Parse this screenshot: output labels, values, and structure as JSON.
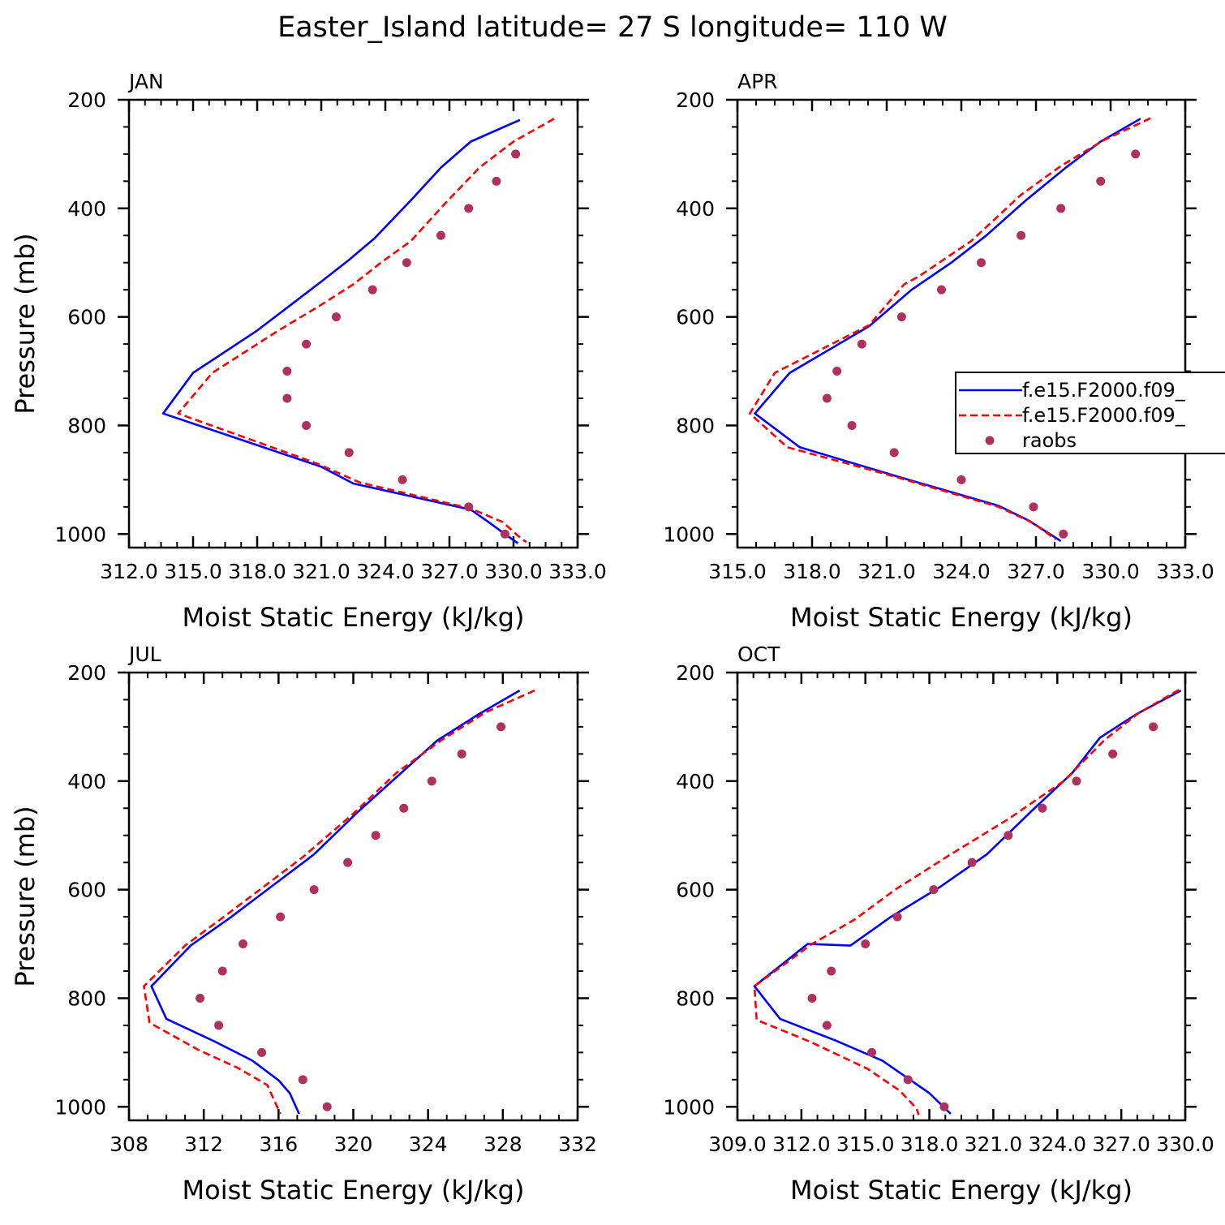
{
  "figure": {
    "title": "Easter_Island  latitude= 27 S longitude= 110 W"
  },
  "colors": {
    "model_a": "#0000ff",
    "model_b": "#ff0000",
    "raobs": "#b03060",
    "axes": "#000000",
    "background": "#ffffff"
  },
  "legend": {
    "entries": [
      {
        "label": "f.e15.F2000.f09_",
        "style": "solid",
        "color": "#0000ff"
      },
      {
        "label": "f.e15.F2000.f09_",
        "style": "dashed",
        "color": "#ff0000"
      },
      {
        "label": "raobs",
        "style": "dots",
        "color": "#b03060"
      }
    ]
  },
  "chart_data": [
    {
      "type": "line",
      "panel": "JAN",
      "xlabel": "Moist Static Energy (kJ/kg)",
      "ylabel": "Pressure (mb)",
      "xlim": [
        312.0,
        333.0
      ],
      "xticks": [
        "312.0",
        "315.0",
        "318.0",
        "321.0",
        "324.0",
        "327.0",
        "330.0",
        "333.0"
      ],
      "xtick_values": [
        312,
        315,
        318,
        321,
        324,
        327,
        330,
        333
      ],
      "ylim": [
        1025,
        200
      ],
      "yticks": [
        200,
        400,
        600,
        800,
        1000
      ],
      "yscale": "linear",
      "grid": false,
      "series": [
        {
          "style": "solid",
          "color": "#0000ff",
          "points": [
            [
              330.3,
              237
            ],
            [
              328.0,
              277
            ],
            [
              326.6,
              325
            ],
            [
              325.2,
              385
            ],
            [
              323.5,
              455
            ],
            [
              322.3,
              495
            ],
            [
              321.0,
              535
            ],
            [
              319.5,
              580
            ],
            [
              318.0,
              625
            ],
            [
              315.0,
              703
            ],
            [
              313.6,
              778
            ],
            [
              321.0,
              876
            ],
            [
              322.5,
              907
            ],
            [
              328.0,
              955
            ],
            [
              328.8,
              977
            ],
            [
              329.7,
              1003
            ],
            [
              330.2,
              1017
            ]
          ]
        },
        {
          "style": "dashed",
          "color": "#ff0000",
          "points": [
            [
              331.9,
              235
            ],
            [
              330.0,
              277
            ],
            [
              328.4,
              325
            ],
            [
              326.7,
              395
            ],
            [
              325.2,
              460
            ],
            [
              323.8,
              500
            ],
            [
              322.5,
              540
            ],
            [
              320.9,
              580
            ],
            [
              319.0,
              625
            ],
            [
              315.9,
              703
            ],
            [
              314.3,
              778
            ],
            [
              320.8,
              870
            ],
            [
              322.8,
              905
            ],
            [
              328.0,
              953
            ],
            [
              329.5,
              978
            ],
            [
              330.2,
              1003
            ],
            [
              330.6,
              1015
            ]
          ]
        },
        {
          "style": "dots",
          "color": "#b03060",
          "points": [
            [
              330.1,
              300
            ],
            [
              329.2,
              350
            ],
            [
              327.9,
              400
            ],
            [
              326.6,
              450
            ],
            [
              325.0,
              500
            ],
            [
              323.4,
              550
            ],
            [
              321.7,
              600
            ],
            [
              320.3,
              650
            ],
            [
              319.4,
              700
            ],
            [
              319.4,
              750
            ],
            [
              320.3,
              800
            ],
            [
              322.3,
              850
            ],
            [
              324.8,
              900
            ],
            [
              327.9,
              950
            ],
            [
              329.6,
              1000
            ]
          ]
        }
      ]
    },
    {
      "type": "line",
      "panel": "APR",
      "xlabel": "Moist Static Energy (kJ/kg)",
      "ylabel": "",
      "xlim": [
        315.0,
        333.0
      ],
      "xticks": [
        "315.0",
        "318.0",
        "321.0",
        "324.0",
        "327.0",
        "330.0",
        "333.0"
      ],
      "xtick_values": [
        315,
        318,
        321,
        324,
        327,
        330,
        333
      ],
      "ylim": [
        1025,
        200
      ],
      "yticks": [
        200,
        400,
        600,
        800,
        1000
      ],
      "yscale": "linear",
      "grid": false,
      "series": [
        {
          "style": "solid",
          "color": "#0000ff",
          "points": [
            [
              331.2,
              235
            ],
            [
              329.6,
              277
            ],
            [
              328.2,
              325
            ],
            [
              326.6,
              385
            ],
            [
              325.0,
              450
            ],
            [
              323.6,
              500
            ],
            [
              322.0,
              550
            ],
            [
              320.3,
              617
            ],
            [
              317.1,
              703
            ],
            [
              315.7,
              778
            ],
            [
              317.5,
              840
            ],
            [
              321.5,
              895
            ],
            [
              325.5,
              948
            ],
            [
              326.7,
              975
            ],
            [
              328.0,
              1013
            ]
          ]
        },
        {
          "style": "dashed",
          "color": "#ff0000",
          "points": [
            [
              331.6,
              234
            ],
            [
              329.7,
              275
            ],
            [
              328.0,
              322
            ],
            [
              326.4,
              375
            ],
            [
              324.4,
              460
            ],
            [
              322.3,
              525
            ],
            [
              321.7,
              540
            ],
            [
              320.3,
              615
            ],
            [
              316.5,
              703
            ],
            [
              315.5,
              778
            ],
            [
              317.0,
              840
            ],
            [
              321.0,
              890
            ],
            [
              325.5,
              950
            ],
            [
              326.9,
              980
            ],
            [
              327.8,
              1010
            ]
          ]
        },
        {
          "style": "dots",
          "color": "#b03060",
          "points": [
            [
              331.0,
              300
            ],
            [
              329.6,
              350
            ],
            [
              328.0,
              400
            ],
            [
              326.4,
              450
            ],
            [
              324.8,
              500
            ],
            [
              323.2,
              550
            ],
            [
              321.6,
              600
            ],
            [
              320.0,
              650
            ],
            [
              319.0,
              700
            ],
            [
              318.6,
              750
            ],
            [
              319.6,
              800
            ],
            [
              321.3,
              850
            ],
            [
              324.0,
              900
            ],
            [
              326.9,
              950
            ],
            [
              328.1,
              1000
            ]
          ]
        }
      ]
    },
    {
      "type": "line",
      "panel": "JUL",
      "xlabel": "Moist Static Energy (kJ/kg)",
      "ylabel": "Pressure (mb)",
      "xlim": [
        308,
        332
      ],
      "xticks": [
        "308",
        "312",
        "316",
        "320",
        "324",
        "328",
        "332"
      ],
      "xtick_values": [
        308,
        312,
        316,
        320,
        324,
        328,
        332
      ],
      "ylim": [
        1025,
        200
      ],
      "yticks": [
        200,
        400,
        600,
        800,
        1000
      ],
      "yscale": "linear",
      "grid": false,
      "series": [
        {
          "style": "solid",
          "color": "#0000ff",
          "points": [
            [
              328.9,
              233
            ],
            [
              326.7,
              277
            ],
            [
              324.5,
              325
            ],
            [
              322.4,
              390
            ],
            [
              320.3,
              455
            ],
            [
              317.9,
              535
            ],
            [
              315.4,
              600
            ],
            [
              313.4,
              652
            ],
            [
              311.3,
              703
            ],
            [
              309.2,
              778
            ],
            [
              310.0,
              838
            ],
            [
              312.6,
              880
            ],
            [
              314.6,
              915
            ],
            [
              316.0,
              951
            ],
            [
              316.6,
              975
            ],
            [
              317.1,
              1013
            ]
          ]
        },
        {
          "style": "dashed",
          "color": "#ff0000",
          "points": [
            [
              329.7,
              233
            ],
            [
              327.1,
              273
            ],
            [
              324.7,
              325
            ],
            [
              322.3,
              385
            ],
            [
              320.0,
              460
            ],
            [
              317.3,
              540
            ],
            [
              315.0,
              600
            ],
            [
              313.0,
              652
            ],
            [
              311.0,
              703
            ],
            [
              308.8,
              778
            ],
            [
              309.1,
              845
            ],
            [
              311.7,
              895
            ],
            [
              313.8,
              928
            ],
            [
              315.4,
              960
            ],
            [
              316.1,
              1013
            ]
          ]
        },
        {
          "style": "dots",
          "color": "#b03060",
          "points": [
            [
              327.9,
              300
            ],
            [
              325.8,
              350
            ],
            [
              324.2,
              400
            ],
            [
              322.7,
              450
            ],
            [
              321.2,
              500
            ],
            [
              319.7,
              550
            ],
            [
              317.9,
              600
            ],
            [
              316.1,
              650
            ],
            [
              314.1,
              700
            ],
            [
              313.0,
              750
            ],
            [
              311.8,
              800
            ],
            [
              312.8,
              850
            ],
            [
              315.1,
              900
            ],
            [
              317.3,
              950
            ],
            [
              318.6,
              1000
            ]
          ]
        }
      ]
    },
    {
      "type": "line",
      "panel": "OCT",
      "xlabel": "Moist Static Energy (kJ/kg)",
      "ylabel": "",
      "xlim": [
        309.0,
        330.0
      ],
      "xticks": [
        "309.0",
        "312.0",
        "315.0",
        "318.0",
        "321.0",
        "324.0",
        "327.0",
        "330.0"
      ],
      "xtick_values": [
        309,
        312,
        315,
        318,
        321,
        324,
        327,
        330
      ],
      "ylim": [
        1025,
        200
      ],
      "yticks": [
        200,
        400,
        600,
        800,
        1000
      ],
      "yscale": "linear",
      "grid": false,
      "series": [
        {
          "style": "solid",
          "color": "#0000ff",
          "points": [
            [
              329.8,
              233
            ],
            [
              327.7,
              277
            ],
            [
              326.0,
              320
            ],
            [
              324.7,
              385
            ],
            [
              322.8,
              455
            ],
            [
              320.7,
              535
            ],
            [
              318.5,
              595
            ],
            [
              316.2,
              650
            ],
            [
              314.3,
              703
            ],
            [
              312.3,
              700
            ],
            [
              309.8,
              778
            ],
            [
              311.0,
              838
            ],
            [
              313.6,
              878
            ],
            [
              315.8,
              915
            ],
            [
              318.0,
              975
            ],
            [
              319.0,
              1013
            ]
          ]
        },
        {
          "style": "dashed",
          "color": "#ff0000",
          "points": [
            [
              329.7,
              232
            ],
            [
              327.8,
              275
            ],
            [
              326.2,
              325
            ],
            [
              324.3,
              400
            ],
            [
              321.7,
              470
            ],
            [
              319.0,
              535
            ],
            [
              316.4,
              600
            ],
            [
              314.5,
              655
            ],
            [
              312.5,
              700
            ],
            [
              309.8,
              778
            ],
            [
              309.9,
              840
            ],
            [
              312.4,
              880
            ],
            [
              315.1,
              930
            ],
            [
              316.6,
              970
            ],
            [
              317.4,
              1003
            ],
            [
              317.5,
              1015
            ]
          ]
        },
        {
          "style": "dots",
          "color": "#b03060",
          "points": [
            [
              328.5,
              300
            ],
            [
              326.6,
              350
            ],
            [
              324.9,
              400
            ],
            [
              323.3,
              450
            ],
            [
              321.7,
              500
            ],
            [
              320.0,
              550
            ],
            [
              318.2,
              600
            ],
            [
              316.5,
              650
            ],
            [
              315.0,
              700
            ],
            [
              313.4,
              750
            ],
            [
              312.5,
              800
            ],
            [
              313.2,
              850
            ],
            [
              315.3,
              900
            ],
            [
              317.0,
              950
            ],
            [
              318.7,
              1000
            ]
          ]
        }
      ]
    }
  ]
}
